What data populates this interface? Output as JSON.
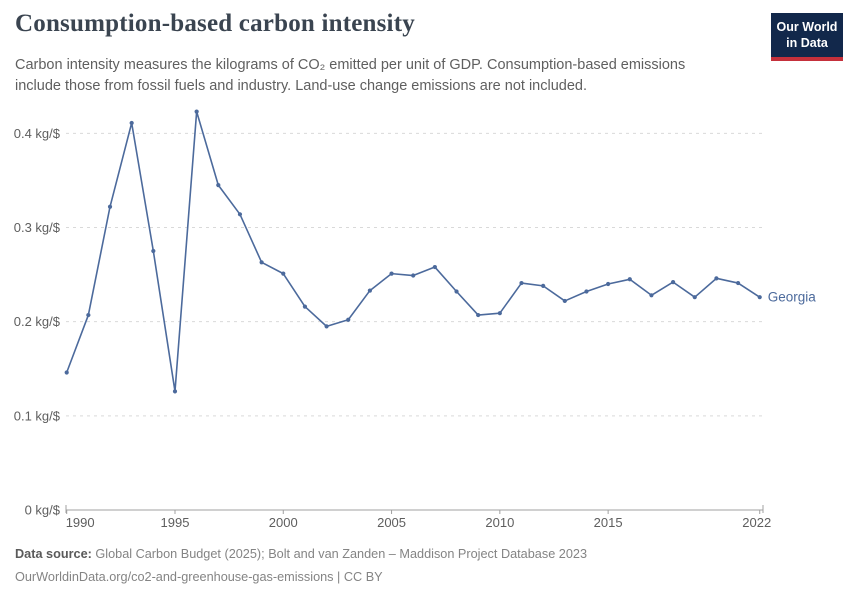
{
  "header": {
    "title": "Consumption-based carbon intensity",
    "subtitle_lines": [
      "Carbon intensity measures the kilograms of CO₂ emitted per unit of GDP. Consumption-based emissions",
      "include those from fossil fuels and industry. Land-use change emissions are not included."
    ],
    "logo": {
      "line1": "Our World",
      "line2": "in Data",
      "bg_color": "#12284b",
      "accent_color": "#c5303b"
    }
  },
  "chart_data": {
    "type": "line",
    "title": "Consumption-based carbon intensity",
    "xlabel": "",
    "ylabel": "kg/$",
    "xlim": [
      1990,
      2022
    ],
    "ylim": [
      0,
      0.44
    ],
    "grid": "horizontal-dashed",
    "legend_position": "end-of-line-label",
    "x": [
      1990,
      1991,
      1992,
      1993,
      1994,
      1995,
      1996,
      1997,
      1998,
      1999,
      2000,
      2001,
      2002,
      2003,
      2004,
      2005,
      2006,
      2007,
      2008,
      2009,
      2010,
      2011,
      2012,
      2013,
      2014,
      2015,
      2016,
      2017,
      2018,
      2019,
      2020,
      2021,
      2022
    ],
    "series": [
      {
        "name": "Georgia",
        "color": "#4c6a9c",
        "values": [
          0.146,
          0.207,
          0.322,
          0.411,
          0.275,
          0.126,
          0.423,
          0.345,
          0.314,
          0.263,
          0.251,
          0.216,
          0.195,
          0.202,
          0.233,
          0.251,
          0.249,
          0.258,
          0.232,
          0.207,
          0.209,
          0.241,
          0.238,
          0.222,
          0.232,
          0.24,
          0.245,
          0.228,
          0.242,
          0.226,
          0.246,
          0.241,
          0.226
        ]
      }
    ],
    "xticks": [
      1990,
      1995,
      2000,
      2005,
      2010,
      2015,
      2022
    ],
    "xtick_labels": [
      "1990",
      "1995",
      "2000",
      "2005",
      "2010",
      "2015",
      "2022"
    ],
    "yticks": [
      0,
      0.1,
      0.2,
      0.3,
      0.4
    ],
    "ytick_labels": [
      "0 kg/$",
      "0.1 kg/$",
      "0.2 kg/$",
      "0.3 kg/$",
      "0.4 kg/$"
    ],
    "axis_color": "#a0a0a0",
    "gridline_color": "#d9d9d9",
    "tick_label_color": "#5e5e5e"
  },
  "footer": {
    "datasource_label": "Data source:",
    "datasource": "Global Carbon Budget (2025); Bolt and van Zanden – Maddison Project Database 2023",
    "link_line": "OurWorldinData.org/co2-and-greenhouse-gas-emissions | CC BY"
  }
}
